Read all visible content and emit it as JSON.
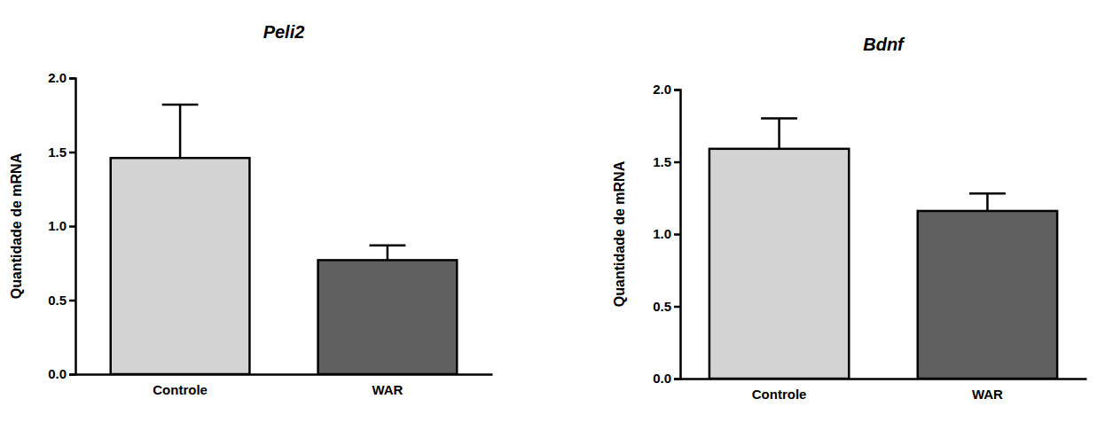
{
  "chart_data": [
    {
      "type": "bar",
      "title": "Peli2",
      "y_label": "Quantidade de mRNA",
      "categories": [
        "Controle",
        "WAR"
      ],
      "values": [
        1.46,
        0.77
      ],
      "errors": [
        0.36,
        0.1
      ],
      "colors": [
        "#d3d3d3",
        "#606060"
      ],
      "ylim": [
        0,
        2
      ],
      "yticks": [
        {
          "value": 0,
          "label": "0.0"
        },
        {
          "value": 0.5,
          "label": "0.5"
        },
        {
          "value": 1,
          "label": "1.0"
        },
        {
          "value": 1.5,
          "label": "1.5"
        },
        {
          "value": 2,
          "label": "2.0"
        }
      ]
    },
    {
      "type": "bar",
      "title": "Bdnf",
      "y_label": "Quantidade de mRNA",
      "categories": [
        "Controle",
        "WAR"
      ],
      "values": [
        1.59,
        1.16
      ],
      "errors": [
        0.21,
        0.12
      ],
      "colors": [
        "#d3d3d3",
        "#606060"
      ],
      "ylim": [
        0,
        2
      ],
      "yticks": [
        {
          "value": 0,
          "label": "0.0"
        },
        {
          "value": 0.5,
          "label": "0.5"
        },
        {
          "value": 1,
          "label": "1.0"
        },
        {
          "value": 1.5,
          "label": "1.5"
        },
        {
          "value": 2,
          "label": "2.0"
        }
      ]
    }
  ]
}
